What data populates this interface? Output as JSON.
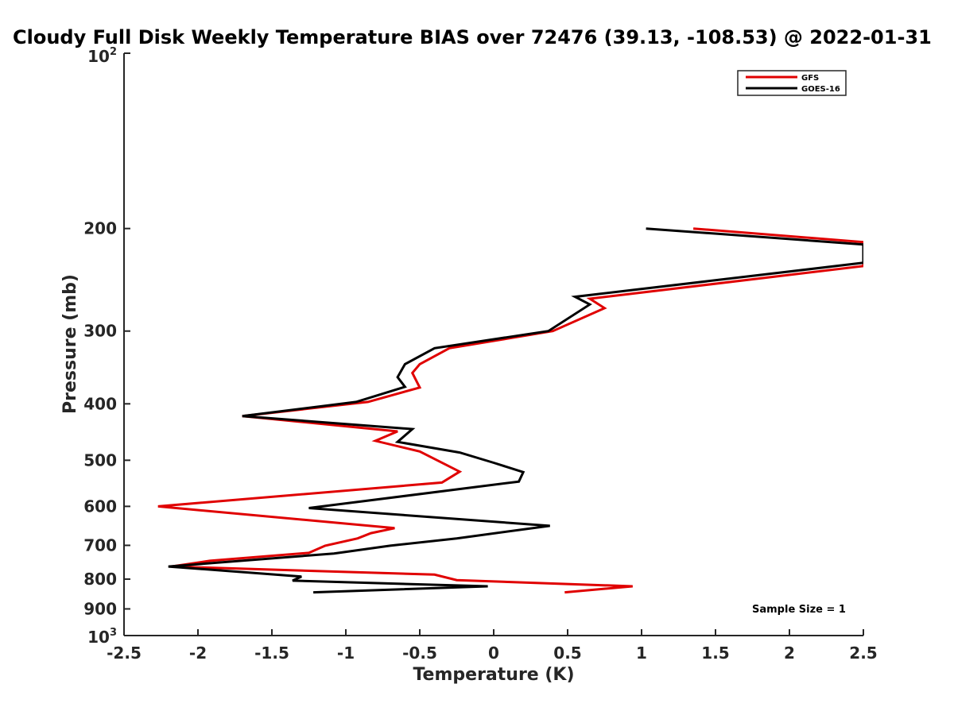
{
  "chart_data": {
    "type": "line",
    "title": "Cloudy Full Disk Weekly Temperature BIAS over 72476 (39.13, -108.53) @ 2022-01-31",
    "xlabel": "Temperature (K)",
    "ylabel": "Pressure (mb)",
    "xlim": [
      -2.5,
      2.5
    ],
    "ylim": [
      100,
      1000
    ],
    "y_scale": "log",
    "y_reversed": true,
    "grid": false,
    "legend_position": "top-right",
    "x_ticks": [
      -2.5,
      -2,
      -1.5,
      -1,
      -0.5,
      0,
      0.5,
      1,
      1.5,
      2,
      2.5
    ],
    "x_tick_labels": [
      "-2.5",
      "-2",
      "-1.5",
      "-1",
      "-0.5",
      "0",
      "0.5",
      "1",
      "1.5",
      "2",
      "2.5"
    ],
    "y_ticks": [
      200,
      300,
      400,
      500,
      600,
      700,
      800,
      900
    ],
    "y_tick_labels": [
      "200",
      "300",
      "400",
      "500",
      "600",
      "700",
      "800",
      "900"
    ],
    "y_tick_top": {
      "base": "10",
      "exp": "2"
    },
    "y_tick_bottom": {
      "base": "10",
      "exp": "3"
    },
    "annotation": "Sample Size = 1",
    "series": [
      {
        "name": "GFS",
        "color": "#e00000",
        "points": [
          [
            1.35,
            200
          ],
          [
            2.5,
            211
          ],
          [
            2.5,
            232
          ],
          [
            0.65,
            264
          ],
          [
            0.75,
            274
          ],
          [
            0.4,
            300
          ],
          [
            -0.3,
            321
          ],
          [
            -0.5,
            342
          ],
          [
            -0.55,
            354
          ],
          [
            -0.5,
            375
          ],
          [
            -0.85,
            397
          ],
          [
            -1.7,
            420
          ],
          [
            -0.65,
            446
          ],
          [
            -0.8,
            463
          ],
          [
            -0.5,
            483
          ],
          [
            -0.23,
            523
          ],
          [
            -0.35,
            546
          ],
          [
            -2.27,
            600
          ],
          [
            -0.67,
            654
          ],
          [
            -0.83,
            667
          ],
          [
            -0.92,
            681
          ],
          [
            -1.14,
            701
          ],
          [
            -1.25,
            721
          ],
          [
            -1.92,
            744
          ],
          [
            -2.18,
            761
          ],
          [
            -0.4,
            786
          ],
          [
            -0.25,
            803
          ],
          [
            0.94,
            823
          ],
          [
            0.48,
            843
          ]
        ]
      },
      {
        "name": "GOES-16",
        "color": "#000000",
        "points": [
          [
            1.03,
            200
          ],
          [
            2.5,
            213
          ],
          [
            2.5,
            229
          ],
          [
            0.55,
            262
          ],
          [
            0.65,
            270
          ],
          [
            0.37,
            300
          ],
          [
            -0.4,
            321
          ],
          [
            -0.6,
            342
          ],
          [
            -0.65,
            360
          ],
          [
            -0.6,
            374
          ],
          [
            -0.93,
            397
          ],
          [
            -1.7,
            420
          ],
          [
            -0.55,
            442
          ],
          [
            -0.65,
            465
          ],
          [
            -0.23,
            485
          ],
          [
            0,
            505
          ],
          [
            0.2,
            524
          ],
          [
            0.17,
            544
          ],
          [
            -1.25,
            604
          ],
          [
            0.38,
            648
          ],
          [
            -0.25,
            681
          ],
          [
            -0.7,
            701
          ],
          [
            -1.08,
            723
          ],
          [
            -2.2,
            761
          ],
          [
            -1.3,
            792
          ],
          [
            -1.36,
            805
          ],
          [
            -0.04,
            823
          ],
          [
            -1.22,
            843
          ]
        ]
      }
    ]
  }
}
